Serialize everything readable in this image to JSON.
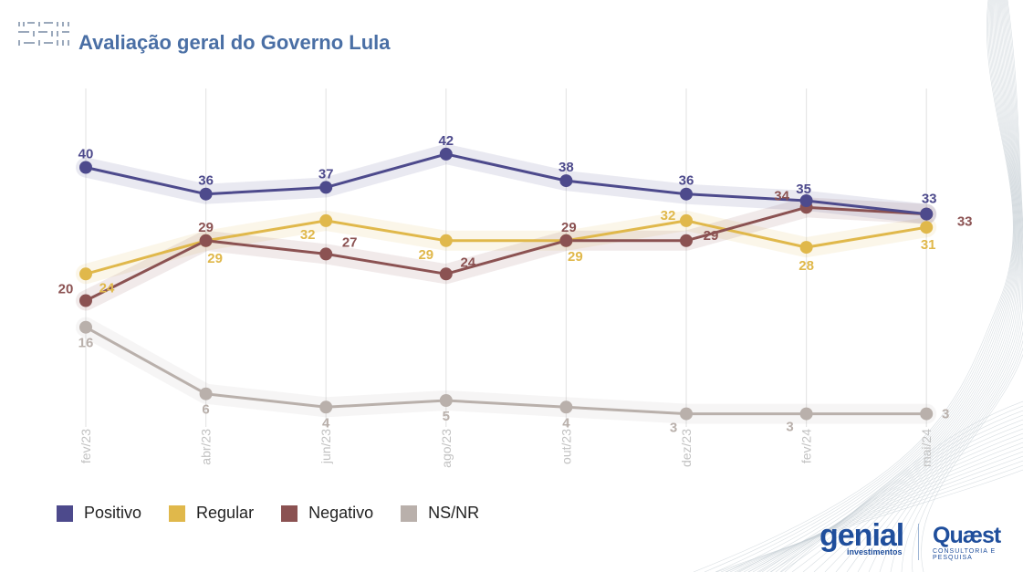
{
  "header": {
    "title": "Avaliação geral do Governo Lula"
  },
  "brands": {
    "genial": "genial",
    "genial_sub": "investimentos",
    "quaest": "Quæst",
    "quaest_sub": "CONSULTORIA E PESQUISA"
  },
  "chart_data": {
    "type": "line",
    "title": "Avaliação geral do Governo Lula",
    "xlabel": "",
    "ylabel": "",
    "categories": [
      "fev/23",
      "abr/23",
      "jun/23",
      "ago/23",
      "out/23",
      "dez/23",
      "fev/24",
      "mai/24"
    ],
    "ylim": [
      0,
      45
    ],
    "grid": "vertical",
    "legend": "bottom-left",
    "series": [
      {
        "name": "Positivo",
        "color": "#4d4a8c",
        "values": [
          40,
          36,
          37,
          42,
          38,
          36,
          35,
          33
        ],
        "labels": [
          "40",
          "36",
          "37",
          "42",
          "38",
          "36",
          "35",
          "33"
        ]
      },
      {
        "name": "Regular",
        "color": "#e0b84b",
        "values": [
          24,
          29,
          32,
          29,
          29,
          32,
          28,
          31
        ],
        "labels": [
          "24",
          "29",
          "32",
          "29",
          "29",
          "32",
          "28",
          "31"
        ]
      },
      {
        "name": "Negativo",
        "color": "#8b5252",
        "values": [
          20,
          29,
          27,
          24,
          29,
          29,
          34,
          33
        ],
        "labels": [
          "20",
          "29",
          "27",
          "24",
          "29",
          "29",
          "34",
          "33"
        ]
      },
      {
        "name": "NS/NR",
        "color": "#b9b0ab",
        "values": [
          16,
          6,
          4,
          5,
          4,
          3,
          3,
          3
        ],
        "labels": [
          "16",
          "6",
          "4",
          "5",
          "4",
          "3",
          "3",
          "3"
        ]
      }
    ]
  }
}
